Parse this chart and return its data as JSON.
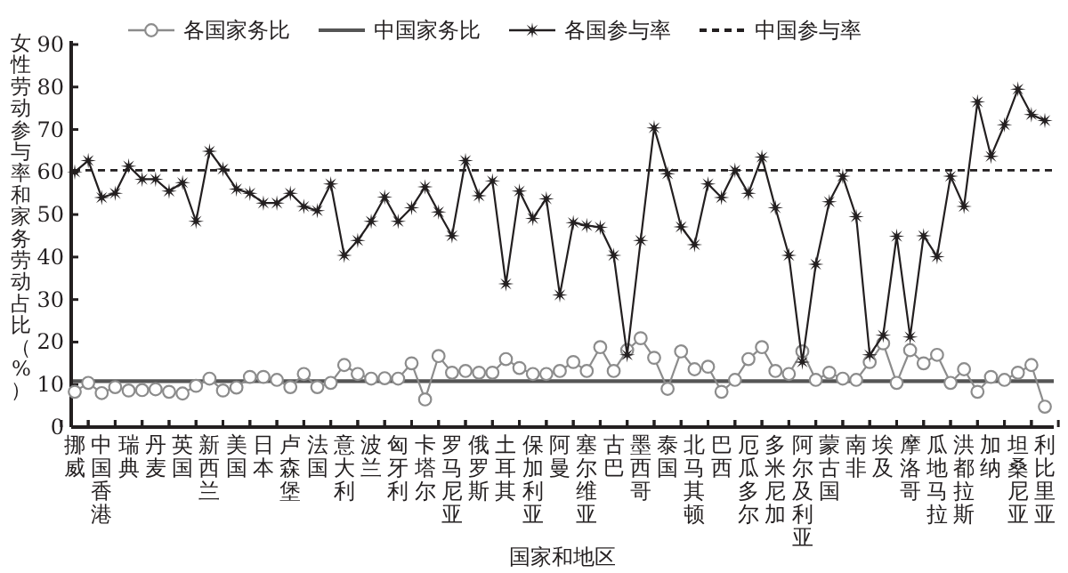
{
  "chart_data": {
    "type": "line",
    "xlabel": "国家和地区",
    "ylabel": "女性劳动参与率和家务劳动占比（%）",
    "categories": [
      "挪威",
      null,
      "中国香港",
      null,
      "瑞典",
      null,
      "丹麦",
      null,
      "英国",
      null,
      "新西兰",
      null,
      "美国",
      null,
      "日本",
      null,
      "卢森堡",
      null,
      "法国",
      null,
      "意大利",
      null,
      "波兰",
      null,
      "匈牙利",
      null,
      "卡塔尔",
      null,
      "罗马尼亚",
      null,
      "俄罗斯",
      null,
      "土耳其",
      null,
      "保加利亚",
      null,
      "阿曼",
      null,
      "塞尔维亚",
      null,
      "古巴",
      null,
      "墨西哥",
      null,
      "泰国",
      null,
      "北马其顿",
      null,
      "巴西",
      null,
      "厄瓜多尔",
      null,
      "多米尼加",
      null,
      "阿尔及利亚",
      null,
      "蒙古国",
      null,
      "南非",
      null,
      "埃及",
      null,
      "摩洛哥",
      null,
      "瓜地马拉",
      null,
      "洪都拉斯",
      null,
      "加纳",
      null,
      "坦桑尼亚",
      null,
      "利比里亚"
    ],
    "series": [
      {
        "name": "各国家务比",
        "color": "#8c8c8c",
        "marker": "circle",
        "line_style": "solid",
        "values": [
          8.3,
          10.4,
          8,
          9.4,
          8.6,
          8.7,
          8.9,
          8.3,
          7.9,
          9.7,
          11.4,
          8.6,
          9.3,
          11.8,
          11.8,
          11.1,
          9.4,
          12.5,
          9.4,
          10.4,
          14.6,
          12.5,
          11.4,
          11.5,
          11.4,
          15,
          6.5,
          16.7,
          12.8,
          13.2,
          12.8,
          12.8,
          16,
          13.9,
          12.5,
          12.5,
          13.2,
          15.3,
          13.2,
          18.8,
          13.2,
          18.1,
          20.9,
          16.3,
          9,
          17.8,
          13.6,
          14.2,
          8.3,
          11.1,
          16,
          18.8,
          13.2,
          12.5,
          17.8,
          11.1,
          12.8,
          11.4,
          11.1,
          15.3,
          19.7,
          10.4,
          18.1,
          15,
          17,
          10.4,
          13.6,
          8.3,
          11.8,
          11.1,
          12.8,
          14.6,
          4.8
        ]
      },
      {
        "name": "各国参与率",
        "color": "#231f20",
        "marker": "star",
        "line_style": "solid",
        "values": [
          60,
          62.7,
          54,
          55,
          61.4,
          58.3,
          58.3,
          55.5,
          57.5,
          48.4,
          64.9,
          60.7,
          56,
          55,
          52.7,
          52.7,
          55,
          51.9,
          50.9,
          57.2,
          40.4,
          43.9,
          48.4,
          54.1,
          48.4,
          51.6,
          56.5,
          50.6,
          45,
          62.7,
          54.4,
          57.9,
          33.7,
          55.5,
          49.1,
          53.7,
          31.1,
          48.1,
          47.4,
          47,
          40.4,
          17,
          43.9,
          70.4,
          59.6,
          47.1,
          42.9,
          57.2,
          54,
          60.4,
          55,
          63.5,
          51.6,
          40.4,
          15.3,
          38.3,
          53,
          59,
          49.5,
          17,
          21.6,
          44.9,
          21.2,
          45,
          40.1,
          59,
          51.9,
          76.5,
          63.7,
          71.1,
          79.5,
          73.5,
          72.1
        ]
      }
    ],
    "ref_lines": [
      {
        "axis": "y",
        "value": 10.8,
        "label": "中国家务比",
        "color": "#555555",
        "line_style": "solid"
      },
      {
        "axis": "y",
        "value": 60.4,
        "label": "中国参与率",
        "color": "#231f20",
        "line_style": "dashed"
      }
    ],
    "ylim": [
      0,
      90
    ],
    "yticks": [
      0,
      10,
      20,
      30,
      40,
      50,
      60,
      70,
      80,
      90
    ],
    "legend": "top",
    "grid": false
  }
}
